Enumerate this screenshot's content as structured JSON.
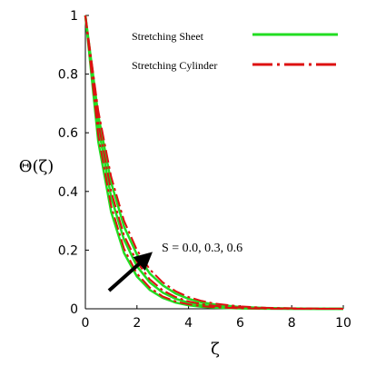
{
  "chart_data": {
    "type": "line",
    "title": "",
    "xlabel": "ζ",
    "ylabel": "Θ(ζ)",
    "xlim": [
      0,
      10
    ],
    "ylim": [
      0,
      1
    ],
    "xticks": [
      "0",
      "2",
      "4",
      "6",
      "8",
      "10"
    ],
    "yticks": [
      "0",
      "0.2",
      "0.4",
      "0.6",
      "0.8",
      "1"
    ],
    "grid": false,
    "legend_position": "top-right",
    "legend": [
      {
        "label": "Stretching Sheet",
        "color": "#22dd22",
        "style": "solid"
      },
      {
        "label": "Stretching Cylinder",
        "color": "#dd1111",
        "style": "dash-dot"
      }
    ],
    "annotation": {
      "text": "S = 0.0, 0.3, 0.6",
      "arrow": "increasing S"
    },
    "x": [
      0,
      0.5,
      1,
      1.5,
      2,
      2.5,
      3,
      3.5,
      4,
      4.5,
      5,
      6,
      7,
      8,
      9,
      10
    ],
    "series": [
      {
        "group": "Stretching Sheet",
        "S": "0.0",
        "color": "#22dd22",
        "style": "solid",
        "values": [
          1,
          0.57,
          0.33,
          0.19,
          0.11,
          0.064,
          0.037,
          0.021,
          0.012,
          0.007,
          0.004,
          0.0013,
          0.0004,
          0.0001,
          0,
          0
        ]
      },
      {
        "group": "Stretching Sheet",
        "S": "0.3",
        "color": "#22dd22",
        "style": "solid",
        "values": [
          1,
          0.62,
          0.38,
          0.235,
          0.145,
          0.09,
          0.055,
          0.034,
          0.021,
          0.013,
          0.008,
          0.003,
          0.001,
          0.0004,
          0.0001,
          0
        ]
      },
      {
        "group": "Stretching Sheet",
        "S": "0.6",
        "color": "#22dd22",
        "style": "solid",
        "values": [
          1,
          0.66,
          0.43,
          0.28,
          0.185,
          0.12,
          0.08,
          0.052,
          0.034,
          0.022,
          0.015,
          0.006,
          0.0026,
          0.0011,
          0.0005,
          0.0002
        ]
      },
      {
        "group": "Stretching Cylinder",
        "S": "0.0",
        "color": "#dd1111",
        "style": "dash-dot",
        "values": [
          1,
          0.59,
          0.35,
          0.205,
          0.12,
          0.072,
          0.042,
          0.025,
          0.015,
          0.009,
          0.005,
          0.0018,
          0.0006,
          0.0002,
          0.0001,
          0
        ]
      },
      {
        "group": "Stretching Cylinder",
        "S": "0.3",
        "color": "#dd1111",
        "style": "dash-dot",
        "values": [
          1,
          0.635,
          0.4,
          0.25,
          0.16,
          0.1,
          0.063,
          0.04,
          0.025,
          0.016,
          0.01,
          0.004,
          0.0016,
          0.0006,
          0.0002,
          0.0001
        ]
      },
      {
        "group": "Stretching Cylinder",
        "S": "0.6",
        "color": "#dd1111",
        "style": "dash-dot",
        "values": [
          1,
          0.675,
          0.45,
          0.3,
          0.2,
          0.134,
          0.09,
          0.06,
          0.04,
          0.027,
          0.018,
          0.008,
          0.0035,
          0.0016,
          0.0007,
          0.0003
        ]
      }
    ]
  }
}
